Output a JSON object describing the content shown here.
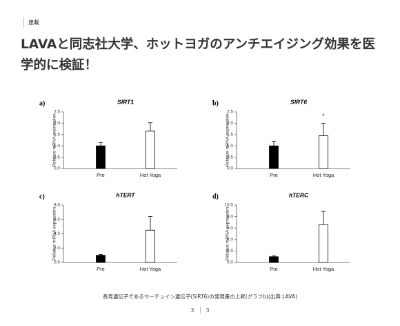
{
  "header": {
    "tag": "連載",
    "title": "LAVAと同志社大学、ホットヨガのアンチエイジング効果を医学的に検証！"
  },
  "chart_data": [
    {
      "type": "bar",
      "panel": "a)",
      "title": "SIRT1",
      "ylabel": "Relative mRNA expression",
      "categories": [
        "Pre",
        "Hot Yoga"
      ],
      "values": [
        1.0,
        1.65
      ],
      "errors": [
        0.15,
        0.37
      ],
      "colors": [
        "#000000",
        "#ffffff"
      ],
      "ylim": [
        0,
        2.5
      ],
      "yticks": [
        {
          "value": 0,
          "label": "0.0"
        },
        {
          "value": 0.5,
          "label": "0.5"
        },
        {
          "value": 1,
          "label": "1.0"
        },
        {
          "value": 1.5,
          "label": "1.5"
        },
        {
          "value": 2,
          "label": "2.0"
        },
        {
          "value": 2.5,
          "label": "2.5"
        }
      ]
    },
    {
      "type": "bar",
      "panel": "b)",
      "title": "SIRT6",
      "ylabel": "Relative mRNA expression",
      "categories": [
        "Pre",
        "Hot Yoga"
      ],
      "values": [
        1.0,
        1.45
      ],
      "errors": [
        0.2,
        0.55
      ],
      "colors": [
        "#000000",
        "#ffffff"
      ],
      "annotation": "*",
      "ylim": [
        0,
        2.5
      ],
      "yticks": [
        {
          "value": 0,
          "label": "0.0"
        },
        {
          "value": 0.5,
          "label": "0.5"
        },
        {
          "value": 1,
          "label": "1.0"
        },
        {
          "value": 1.5,
          "label": "1.5"
        },
        {
          "value": 2,
          "label": "2.0"
        },
        {
          "value": 2.5,
          "label": "2.5"
        }
      ]
    },
    {
      "type": "bar",
      "panel": "c)",
      "title": "hTERT",
      "ylabel": "Relative mRNA expression",
      "categories": [
        "Pre",
        "Hot Yoga"
      ],
      "values": [
        1.0,
        4.5
      ],
      "errors": [
        0.1,
        1.9
      ],
      "colors": [
        "#000000",
        "#ffffff"
      ],
      "ylim": [
        0,
        8
      ],
      "yticks": [
        {
          "value": 0,
          "label": "0.0"
        },
        {
          "value": 2,
          "label": "2.0"
        },
        {
          "value": 4,
          "label": "4.0"
        },
        {
          "value": 6,
          "label": "6.0"
        },
        {
          "value": 8,
          "label": "8.0"
        }
      ]
    },
    {
      "type": "bar",
      "panel": "d)",
      "title": "hTERC",
      "ylabel": "Relative mRNA expression",
      "categories": [
        "Pre",
        "Hot Yoga"
      ],
      "values": [
        1.0,
        6.6
      ],
      "errors": [
        0.15,
        2.3
      ],
      "colors": [
        "#000000",
        "#ffffff"
      ],
      "ylim": [
        0,
        10
      ],
      "yticks": [
        {
          "value": 0,
          "label": "0.0"
        },
        {
          "value": 2,
          "label": "2.0"
        },
        {
          "value": 4,
          "label": "4.0"
        },
        {
          "value": 6,
          "label": "6.0"
        },
        {
          "value": 8,
          "label": "8.0"
        },
        {
          "value": 10,
          "label": "10.0"
        }
      ]
    }
  ],
  "caption": "長寿遺伝子であるサーチュイン遺伝子(SIRT6)の発現量の上昇(グラフb)(出典:LAVA)",
  "pagination": [
    "3",
    "3"
  ]
}
